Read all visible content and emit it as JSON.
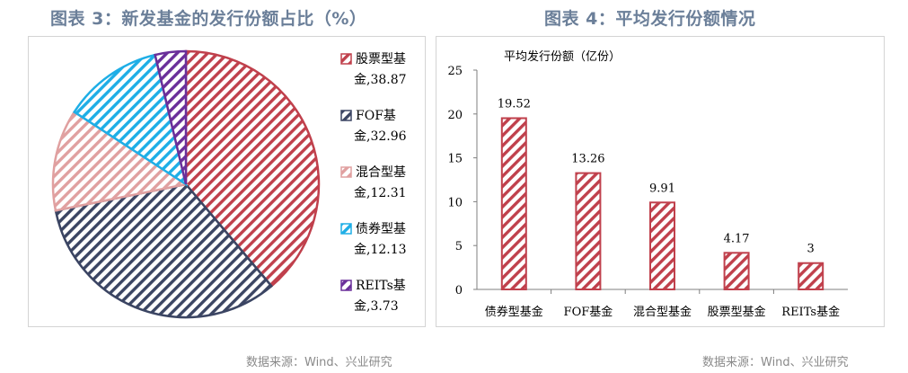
{
  "left_title": "图表 3：新发基金的发行份额占比（%）",
  "right_title": "图表 4：平均发行份额情况",
  "left_source": "数据来源：Wind、兴业研究",
  "right_source": "数据来源：Wind、兴业研究",
  "chart_data": [
    {
      "type": "pie",
      "slices": [
        {
          "label": "股票型基金",
          "value": 38.87,
          "legend": [
            "股票型基",
            "金,38.87"
          ],
          "color": "#c0404c",
          "bg": "#ffffff"
        },
        {
          "label": "FOF基金",
          "value": 32.96,
          "legend": [
            "FOF基",
            "金,32.96"
          ],
          "color": "#3b4563",
          "bg": "#ffffff"
        },
        {
          "label": "混合型基金",
          "value": 12.31,
          "legend": [
            "混合型基",
            "金,12.31"
          ],
          "color": "#e0a0a0",
          "bg": "#ffffff"
        },
        {
          "label": "债券型基金",
          "value": 12.13,
          "legend": [
            "债券型基",
            "金,12.13"
          ],
          "color": "#1eaee6",
          "bg": "#ffffff"
        },
        {
          "label": "REITs基金",
          "value": 3.73,
          "legend": [
            "REITs基",
            "金,3.73"
          ],
          "color": "#6a2f9a",
          "bg": "#ffffff"
        }
      ],
      "legend_position": "right"
    },
    {
      "type": "bar",
      "title": "平均发行份额（亿份）",
      "categories": [
        "债券型基金",
        "FOF基金",
        "混合型基金",
        "股票型基金",
        "REITs基金"
      ],
      "values": [
        19.52,
        13.26,
        9.91,
        4.17,
        3
      ],
      "value_labels": [
        "19.52",
        "13.26",
        "9.91",
        "4.17",
        "3"
      ],
      "ylim": [
        0,
        25
      ],
      "yticks": [
        0,
        5,
        10,
        15,
        20,
        25
      ],
      "grid": false,
      "color": "#c0404c"
    }
  ]
}
